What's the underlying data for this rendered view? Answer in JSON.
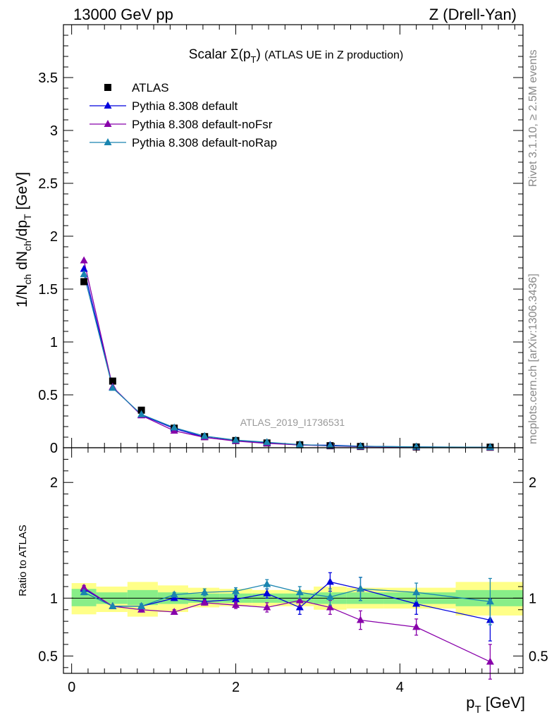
{
  "header": {
    "left": "13000 GeV pp",
    "right": "Z (Drell-Yan)"
  },
  "side_labels": {
    "rivet": "Rivet 3.1.10, ≥ 2.5M events",
    "mcplots": "mcplots.cern.ch [arXiv:1306.3436]"
  },
  "watermark": "ATLAS_2019_I1736531",
  "colors": {
    "data": "#000000",
    "default": "#0000dd",
    "noFsr": "#8800aa",
    "noRap": "#1a85b0",
    "band_outer": "#ffff88",
    "band_inner": "#88ee88"
  },
  "chart_data": [
    {
      "type": "line",
      "title_prefix": "Scalar Σ(p",
      "title_sub": "T",
      "title_close": ")",
      "title_rest": "(ATLAS UE in Z production)",
      "ylabel_parts": [
        "1/N",
        "ch",
        " dN",
        "ch",
        "/dp",
        "T",
        " [GeV]"
      ],
      "xlim": [
        -0.1,
        5.5
      ],
      "ylim": [
        0,
        4.0
      ],
      "yticks": [
        0,
        0.5,
        1,
        1.5,
        2,
        2.5,
        3,
        3.5
      ],
      "ytick_labels": [
        "0",
        "0.5",
        "1",
        "1.5",
        "2",
        "2.5",
        "3",
        "3.5"
      ],
      "x": [
        0.15,
        0.5,
        0.85,
        1.25,
        1.62,
        2.0,
        2.38,
        2.78,
        3.15,
        3.52,
        4.2,
        5.1
      ],
      "series": [
        {
          "name": "ATLAS",
          "key": "data",
          "marker": "square",
          "values": [
            1.57,
            0.63,
            0.355,
            0.185,
            0.105,
            0.068,
            0.045,
            0.028,
            0.019,
            0.012,
            0.007,
            0.005
          ]
        },
        {
          "name": "Pythia 8.308 default",
          "key": "default",
          "marker": "triangle",
          "values": [
            1.69,
            0.57,
            0.31,
            0.182,
            0.1,
            0.066,
            0.047,
            0.026,
            0.024,
            0.014,
            0.007,
            0.004
          ]
        },
        {
          "name": "Pythia 8.308 default-noFsr",
          "key": "noFsr",
          "marker": "triangle",
          "values": [
            1.77,
            0.575,
            0.305,
            0.16,
            0.098,
            0.063,
            0.041,
            0.027,
            0.017,
            0.01,
            0.005,
            0.002
          ]
        },
        {
          "name": "Pythia 8.308 default-noRap",
          "key": "noRap",
          "marker": "triangle",
          "values": [
            1.64,
            0.565,
            0.315,
            0.19,
            0.11,
            0.072,
            0.052,
            0.03,
            0.019,
            0.014,
            0.008,
            0.005
          ]
        }
      ]
    },
    {
      "type": "line",
      "ylabel": "Ratio to ATLAS",
      "xlabel_main": "p",
      "xlabel_sub": "T",
      "xlabel_unit": "[GeV]",
      "xlim": [
        -0.1,
        5.5
      ],
      "ylim": [
        0.35,
        2.3
      ],
      "yticks": [
        0.5,
        1,
        2
      ],
      "ytick_labels": [
        "0.5",
        "1",
        "2"
      ],
      "xticks": [
        0,
        2,
        4
      ],
      "xtick_labels": [
        "0",
        "2",
        "4"
      ],
      "bins": [
        {
          "lo": 0.0,
          "hi": 0.3,
          "inner": [
            0.93,
            1.08
          ],
          "outer": [
            0.86,
            1.13
          ]
        },
        {
          "lo": 0.3,
          "hi": 0.68,
          "inner": [
            0.95,
            1.05
          ],
          "outer": [
            0.88,
            1.1
          ]
        },
        {
          "lo": 0.68,
          "hi": 1.05,
          "inner": [
            0.94,
            1.07
          ],
          "outer": [
            0.84,
            1.14
          ]
        },
        {
          "lo": 1.05,
          "hi": 1.42,
          "inner": [
            0.95,
            1.05
          ],
          "outer": [
            0.88,
            1.11
          ]
        },
        {
          "lo": 1.42,
          "hi": 1.8,
          "inner": [
            0.96,
            1.04
          ],
          "outer": [
            0.92,
            1.09
          ]
        },
        {
          "lo": 1.8,
          "hi": 2.2,
          "inner": [
            0.96,
            1.04
          ],
          "outer": [
            0.93,
            1.08
          ]
        },
        {
          "lo": 2.2,
          "hi": 2.58,
          "inner": [
            0.96,
            1.04
          ],
          "outer": [
            0.93,
            1.07
          ]
        },
        {
          "lo": 2.58,
          "hi": 2.95,
          "inner": [
            0.96,
            1.04
          ],
          "outer": [
            0.93,
            1.07
          ]
        },
        {
          "lo": 2.95,
          "hi": 3.35,
          "inner": [
            0.95,
            1.05
          ],
          "outer": [
            0.9,
            1.1
          ]
        },
        {
          "lo": 3.35,
          "hi": 3.8,
          "inner": [
            0.95,
            1.05
          ],
          "outer": [
            0.91,
            1.09
          ]
        },
        {
          "lo": 3.8,
          "hi": 4.68,
          "inner": [
            0.95,
            1.05
          ],
          "outer": [
            0.91,
            1.09
          ]
        },
        {
          "lo": 4.68,
          "hi": 5.5,
          "inner": [
            0.93,
            1.07
          ],
          "outer": [
            0.85,
            1.14
          ]
        }
      ],
      "x": [
        0.15,
        0.5,
        0.85,
        1.25,
        1.62,
        2.0,
        2.38,
        2.78,
        3.15,
        3.52,
        4.2,
        5.1
      ],
      "series": [
        {
          "name": "Pythia 8.308 default",
          "key": "default",
          "values": [
            1.08,
            0.93,
            0.93,
            1.0,
            0.97,
            0.99,
            1.04,
            0.92,
            1.14,
            1.08,
            0.95,
            0.81
          ],
          "err": [
            0.02,
            0.01,
            0.02,
            0.02,
            0.02,
            0.03,
            0.04,
            0.06,
            0.08,
            0.1,
            0.09,
            0.18
          ]
        },
        {
          "name": "Pythia 8.308 default-noFsr",
          "key": "noFsr",
          "values": [
            1.09,
            0.93,
            0.9,
            0.88,
            0.96,
            0.94,
            0.92,
            0.98,
            0.92,
            0.81,
            0.75,
            0.45
          ],
          "err": [
            0.02,
            0.01,
            0.02,
            0.02,
            0.02,
            0.03,
            0.04,
            0.05,
            0.06,
            0.08,
            0.07,
            0.15
          ]
        },
        {
          "name": "Pythia 8.308 default-noRap",
          "key": "noRap",
          "values": [
            1.05,
            0.93,
            0.93,
            1.03,
            1.05,
            1.06,
            1.12,
            1.05,
            1.01,
            1.08,
            1.05,
            0.97
          ],
          "err": [
            0.02,
            0.01,
            0.02,
            0.02,
            0.03,
            0.03,
            0.04,
            0.05,
            0.07,
            0.1,
            0.08,
            0.2
          ]
        }
      ]
    }
  ]
}
